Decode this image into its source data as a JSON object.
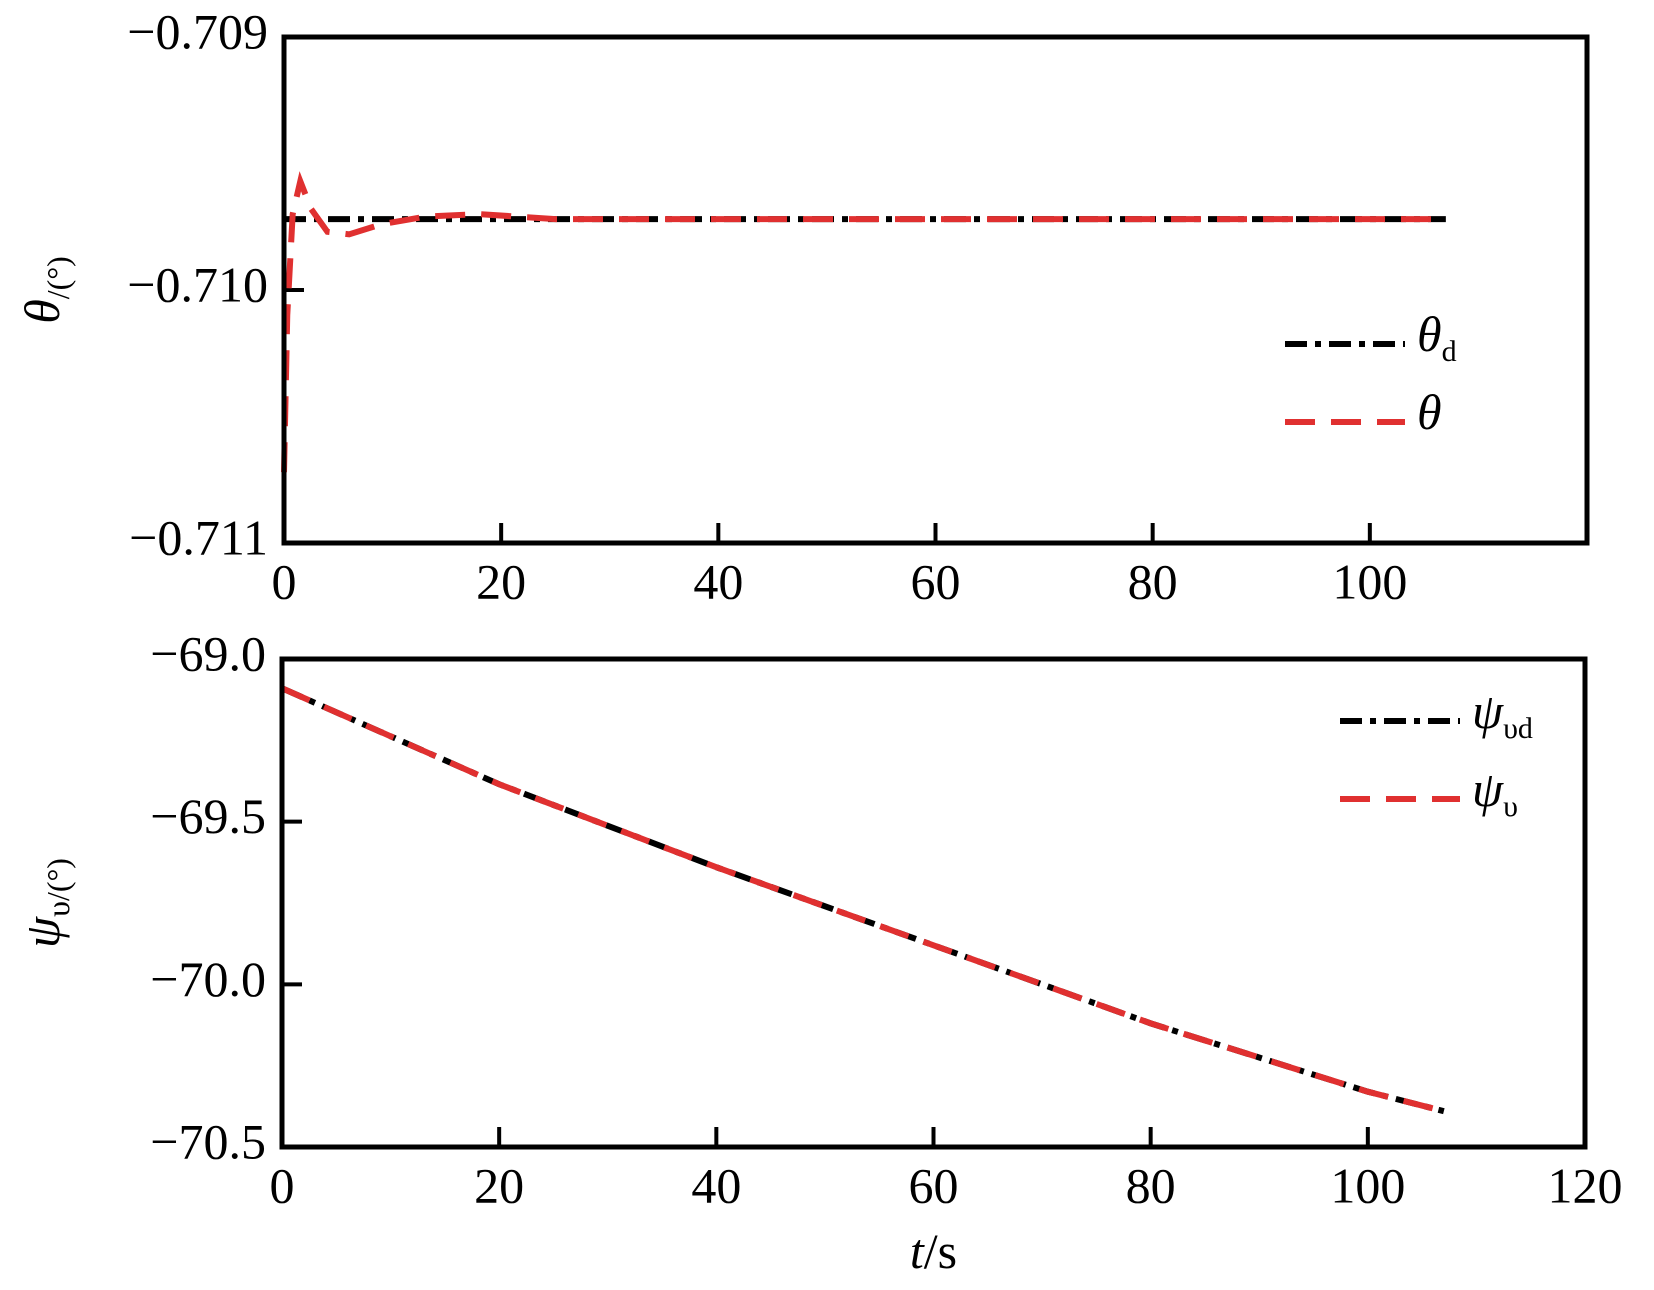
{
  "chart_data": [
    {
      "type": "line",
      "ylabel": "θ/(°)",
      "xlim": [
        0,
        120
      ],
      "xticks": [
        0,
        20,
        40,
        60,
        80,
        100
      ],
      "ylim": [
        -0.711,
        -0.709
      ],
      "yticks": [
        {
          "value": -0.711,
          "label": "−0.711"
        },
        {
          "value": -0.71,
          "label": "−0.710"
        },
        {
          "value": -0.709,
          "label": "−0.709"
        }
      ],
      "legend": "center right",
      "series": [
        {
          "name": "θd",
          "color": "#000000",
          "style": "dashdot",
          "x": [
            0,
            107
          ],
          "values": [
            -0.70972,
            -0.70972
          ]
        },
        {
          "name": "θ",
          "color": "#e03030",
          "style": "dashed",
          "x": [
            0,
            0.3,
            0.8,
            1.5,
            2.5,
            4,
            6,
            9,
            13,
            18,
            25,
            40,
            60,
            80,
            100,
            106,
            107
          ],
          "values": [
            -0.71072,
            -0.7101,
            -0.7097,
            -0.70957,
            -0.70968,
            -0.70977,
            -0.70978,
            -0.70974,
            -0.70971,
            -0.7097,
            -0.70972,
            -0.70972,
            -0.70972,
            -0.70972,
            -0.70972,
            -0.70972,
            -0.7097
          ]
        }
      ]
    },
    {
      "type": "line",
      "ylabel": "ψυ/(°)",
      "xlabel": "t/s",
      "xlim": [
        0,
        120
      ],
      "xticks": [
        0,
        20,
        40,
        60,
        80,
        100,
        120
      ],
      "ylim": [
        -70.5,
        -69.0
      ],
      "yticks": [
        {
          "value": -70.5,
          "label": "−70.5"
        },
        {
          "value": -70.0,
          "label": "−70.0"
        },
        {
          "value": -69.5,
          "label": "−69.5"
        },
        {
          "value": -69.0,
          "label": "−69.0"
        }
      ],
      "legend": "upper right",
      "series": [
        {
          "name": "ψυd",
          "color": "#000000",
          "style": "dashdot",
          "x": [
            0,
            20,
            40,
            60,
            80,
            100,
            107
          ],
          "values": [
            -69.09,
            -69.385,
            -69.64,
            -69.88,
            -70.12,
            -70.33,
            -70.39
          ]
        },
        {
          "name": "ψυ",
          "color": "#e03030",
          "style": "dashed",
          "x": [
            0,
            20,
            40,
            60,
            80,
            100,
            107
          ],
          "values": [
            -69.09,
            -69.385,
            -69.64,
            -69.88,
            -70.12,
            -70.33,
            -70.39
          ]
        }
      ]
    }
  ]
}
